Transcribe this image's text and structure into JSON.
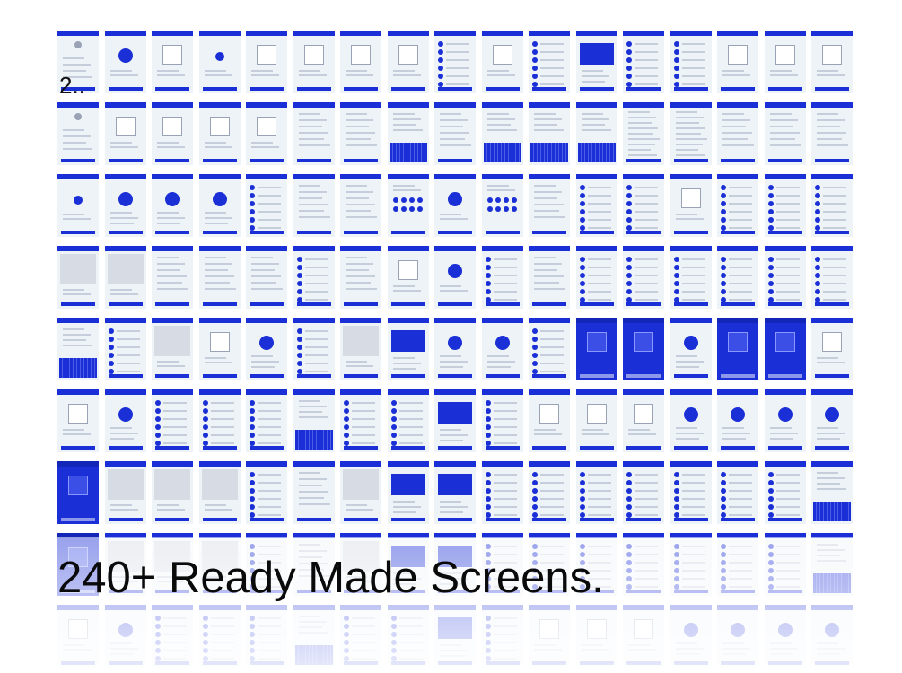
{
  "section_number": "2..",
  "headline": "240+ Ready Made Screens.",
  "colors": {
    "accent": "#1b2fd6",
    "screen_bg": "#eef3f8",
    "text": "#0a0a0a"
  },
  "screen_grid": {
    "columns": 17,
    "rows": 7,
    "reflection_rows": 2,
    "thumbnail_kinds": [
      [
        "logo",
        "circle",
        "pic",
        "dot",
        "pic",
        "pic",
        "pic",
        "pic",
        "list",
        "pic",
        "list",
        "chart",
        "list",
        "list",
        "pic",
        "pic",
        "pic"
      ],
      [
        "logo",
        "pic",
        "pic",
        "pic",
        "pic",
        "form",
        "form",
        "keys",
        "form",
        "keys",
        "keys",
        "keys",
        "text",
        "text",
        "form",
        "form",
        "form"
      ],
      [
        "dot",
        "avatar",
        "avatar",
        "avatar",
        "list",
        "form",
        "form",
        "dots",
        "circle",
        "dots",
        "form",
        "list",
        "list",
        "pic",
        "list",
        "list",
        "list"
      ],
      [
        "map",
        "map",
        "form",
        "form",
        "form",
        "list",
        "form",
        "pic",
        "circle",
        "list",
        "form",
        "list",
        "list",
        "list",
        "list",
        "list",
        "list"
      ],
      [
        "keys",
        "list",
        "map",
        "pic",
        "avatar",
        "list",
        "map",
        "chart",
        "avatar",
        "avatar",
        "list",
        "dark",
        "dark",
        "avatar",
        "dark",
        "dark",
        "pic"
      ],
      [
        "pic",
        "avatar",
        "list",
        "list",
        "list",
        "keys",
        "list",
        "list",
        "chart",
        "list",
        "pic",
        "pic",
        "pic",
        "avatar",
        "avatar",
        "avatar",
        "avatar"
      ],
      [
        "dark",
        "map",
        "map",
        "map",
        "list",
        "form",
        "map",
        "chart",
        "chart",
        "list",
        "list",
        "list",
        "list",
        "list",
        "list",
        "list",
        "keys"
      ]
    ]
  }
}
